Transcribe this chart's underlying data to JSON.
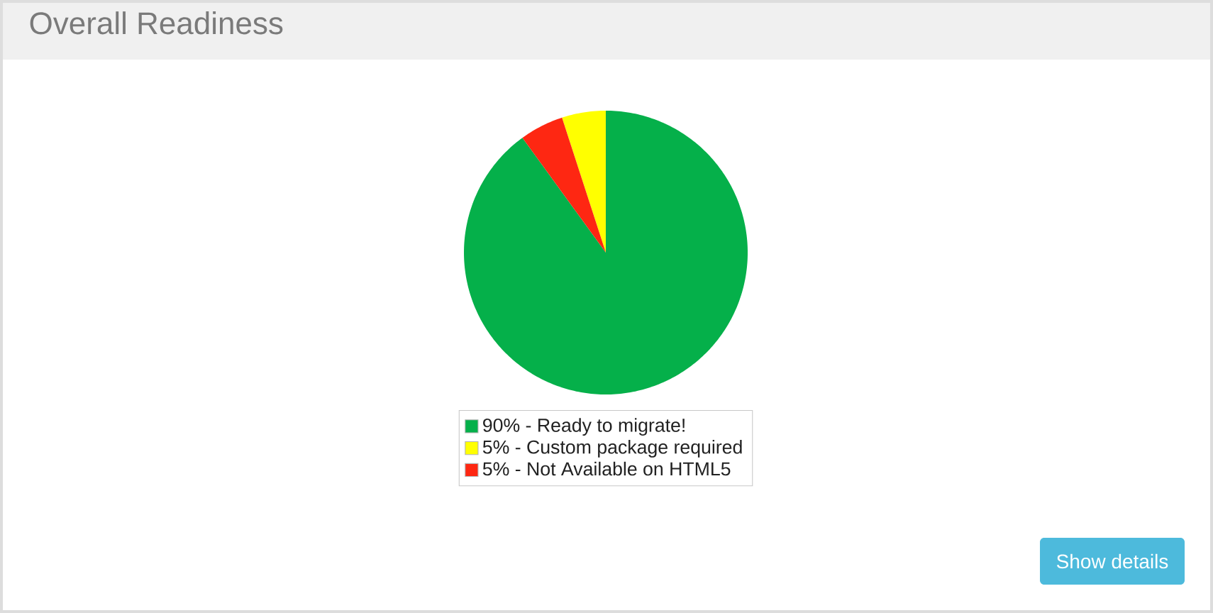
{
  "chart_data": {
    "type": "pie",
    "title": "Overall Readiness",
    "categories": [
      "90% - Ready to migrate!",
      "5% - Custom package required",
      "5% - Not Available on HTML5"
    ],
    "values": [
      90,
      5,
      5
    ],
    "colors": [
      "#05b04a",
      "#ffff00",
      "#fe2712"
    ],
    "legend": "bottom",
    "annotations": [
      "Show details"
    ]
  }
}
